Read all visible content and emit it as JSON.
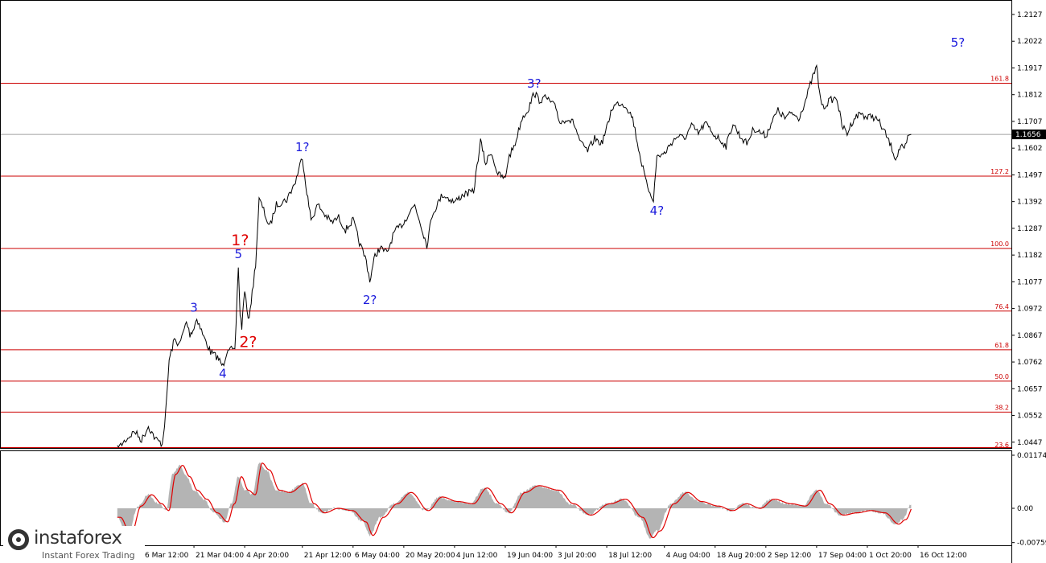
{
  "chart_data": [
    {
      "type": "line",
      "title": "",
      "xlabel": "",
      "ylabel": "",
      "x_ticks": [
        "6 Mar 12:00",
        "21 Mar 04:00",
        "4 Apr 20:00",
        "21 Apr 12:00",
        "6 May 04:00",
        "20 May 20:00",
        "4 Jun 12:00",
        "19 Jun 04:00",
        "3 Jul 20:00",
        "18 Jul 12:00",
        "4 Aug 04:00",
        "18 Aug 20:00",
        "2 Sep 12:00",
        "17 Sep 04:00",
        "1 Oct 20:00",
        "16 Oct 12:00"
      ],
      "y_ticks": [
        "1.2127",
        "1.2022",
        "1.1917",
        "1.1812",
        "1.1707",
        "1.1602",
        "1.1497",
        "1.1392",
        "1.1287",
        "1.1182",
        "1.1077",
        "1.0972",
        "1.0867",
        "1.0762",
        "1.0657",
        "1.0552",
        "1.0447"
      ],
      "ylim": [
        1.044,
        1.218
      ],
      "current_price": "1.1656",
      "price_path": [
        {
          "x": "27 Feb 00:00",
          "y": 1.042
        },
        {
          "x": "1 Mar 00:00",
          "y": 1.045
        },
        {
          "x": "4 Mar 00:00",
          "y": 1.049
        },
        {
          "x": "6 Mar 00:00",
          "y": 1.0455
        },
        {
          "x": "8 Mar 00:00",
          "y": 1.051
        },
        {
          "x": "10 Mar 00:00",
          "y": 1.046
        },
        {
          "x": "12 Mar 00:00",
          "y": 1.044
        },
        {
          "x": "13 Mar 00:00",
          "y": 1.056
        },
        {
          "x": "14 Mar 00:00",
          "y": 1.077
        },
        {
          "x": "15 Mar 12:00",
          "y": 1.085
        },
        {
          "x": "17 Mar 00:00",
          "y": 1.083
        },
        {
          "x": "19 Mar 00:00",
          "y": 1.092
        },
        {
          "x": "20 Mar 00:00",
          "y": 1.087
        },
        {
          "x": "21 Mar 04:00",
          "y": 1.0895
        },
        {
          "x": "22 Mar 00:00",
          "y": 1.0935
        },
        {
          "x": "24 Mar 00:00",
          "y": 1.086
        },
        {
          "x": "26 Mar 00:00",
          "y": 1.08
        },
        {
          "x": "28 Mar 00:00",
          "y": 1.078
        },
        {
          "x": "29 Mar 12:00",
          "y": 1.0745
        },
        {
          "x": "31 Mar 00:00",
          "y": 1.082
        },
        {
          "x": "2 Apr 00:00",
          "y": 1.08
        },
        {
          "x": "3 Apr 00:00",
          "y": 1.114
        },
        {
          "x": "3 Apr 12:00",
          "y": 1.095
        },
        {
          "x": "4 Apr 00:00",
          "y": 1.09
        },
        {
          "x": "4 Apr 20:00",
          "y": 1.105
        },
        {
          "x": "5 Apr 20:00",
          "y": 1.092
        },
        {
          "x": "7 Apr 00:00",
          "y": 1.103
        },
        {
          "x": "8 Apr 00:00",
          "y": 1.115
        },
        {
          "x": "9 Apr 00:00",
          "y": 1.14
        },
        {
          "x": "10 Apr 00:00",
          "y": 1.137
        },
        {
          "x": "12 Apr 00:00",
          "y": 1.129
        },
        {
          "x": "14 Apr 00:00",
          "y": 1.138
        },
        {
          "x": "17 Apr 00:00",
          "y": 1.14
        },
        {
          "x": "19 Apr 12:00",
          "y": 1.147
        },
        {
          "x": "21 Apr 12:00",
          "y": 1.157
        },
        {
          "x": "22 Apr 12:00",
          "y": 1.146
        },
        {
          "x": "24 Apr 00:00",
          "y": 1.132
        },
        {
          "x": "26 Apr 00:00",
          "y": 1.138
        },
        {
          "x": "28 Apr 00:00",
          "y": 1.134
        },
        {
          "x": "30 Apr 00:00",
          "y": 1.131
        },
        {
          "x": "2 May 00:00",
          "y": 1.133
        },
        {
          "x": "4 May 00:00",
          "y": 1.128
        },
        {
          "x": "6 May 04:00",
          "y": 1.132
        },
        {
          "x": "8 May 00:00",
          "y": 1.123
        },
        {
          "x": "10 May 00:00",
          "y": 1.116
        },
        {
          "x": "11 May 00:00",
          "y": 1.108
        },
        {
          "x": "12 May 12:00",
          "y": 1.118
        },
        {
          "x": "14 May 00:00",
          "y": 1.121
        },
        {
          "x": "16 May 00:00",
          "y": 1.119
        },
        {
          "x": "18 May 00:00",
          "y": 1.127
        },
        {
          "x": "20 May 20:00",
          "y": 1.131
        },
        {
          "x": "22 May 00:00",
          "y": 1.134
        },
        {
          "x": "24 May 00:00",
          "y": 1.138
        },
        {
          "x": "26 May 00:00",
          "y": 1.129
        },
        {
          "x": "27 May 12:00",
          "y": 1.122
        },
        {
          "x": "29 May 00:00",
          "y": 1.134
        },
        {
          "x": "1 Jun 00:00",
          "y": 1.142
        },
        {
          "x": "4 Jun 12:00",
          "y": 1.139
        },
        {
          "x": "7 Jun 00:00",
          "y": 1.142
        },
        {
          "x": "10 Jun 00:00",
          "y": 1.143
        },
        {
          "x": "11 Jun 00:00",
          "y": 1.153
        },
        {
          "x": "12 Jun 00:00",
          "y": 1.163
        },
        {
          "x": "13 Jun 12:00",
          "y": 1.154
        },
        {
          "x": "15 Jun 00:00",
          "y": 1.159
        },
        {
          "x": "17 Jun 00:00",
          "y": 1.15
        },
        {
          "x": "19 Jun 04:00",
          "y": 1.148
        },
        {
          "x": "20 Jun 00:00",
          "y": 1.156
        },
        {
          "x": "22 Jun 00:00",
          "y": 1.162
        },
        {
          "x": "24 Jun 00:00",
          "y": 1.172
        },
        {
          "x": "26 Jun 00:00",
          "y": 1.176
        },
        {
          "x": "27 Jun 12:00",
          "y": 1.182
        },
        {
          "x": "29 Jun 00:00",
          "y": 1.179
        },
        {
          "x": "1 Jul 00:00",
          "y": 1.18
        },
        {
          "x": "3 Jul 20:00",
          "y": 1.176
        },
        {
          "x": "5 Jul 00:00",
          "y": 1.17
        },
        {
          "x": "7 Jul 00:00",
          "y": 1.172
        },
        {
          "x": "9 Jul 00:00",
          "y": 1.17
        },
        {
          "x": "11 Jul 00:00",
          "y": 1.162
        },
        {
          "x": "13 Jul 00:00",
          "y": 1.159
        },
        {
          "x": "15 Jul 00:00",
          "y": 1.164
        },
        {
          "x": "17 Jul 00:00",
          "y": 1.162
        },
        {
          "x": "18 Jul 12:00",
          "y": 1.168
        },
        {
          "x": "20 Jul 00:00",
          "y": 1.176
        },
        {
          "x": "22 Jul 00:00",
          "y": 1.178
        },
        {
          "x": "24 Jul 00:00",
          "y": 1.177
        },
        {
          "x": "26 Jul 00:00",
          "y": 1.172
        },
        {
          "x": "28 Jul 00:00",
          "y": 1.158
        },
        {
          "x": "30 Jul 00:00",
          "y": 1.146
        },
        {
          "x": "1 Aug 00:00",
          "y": 1.14
        },
        {
          "x": "2 Aug 00:00",
          "y": 1.157
        },
        {
          "x": "4 Aug 04:00",
          "y": 1.158
        },
        {
          "x": "6 Aug 00:00",
          "y": 1.162
        },
        {
          "x": "8 Aug 00:00",
          "y": 1.165
        },
        {
          "x": "10 Aug 00:00",
          "y": 1.164
        },
        {
          "x": "12 Aug 00:00",
          "y": 1.169
        },
        {
          "x": "14 Aug 00:00",
          "y": 1.166
        },
        {
          "x": "16 Aug 00:00",
          "y": 1.17
        },
        {
          "x": "18 Aug 20:00",
          "y": 1.165
        },
        {
          "x": "20 Aug 00:00",
          "y": 1.164
        },
        {
          "x": "22 Aug 00:00",
          "y": 1.161
        },
        {
          "x": "24 Aug 00:00",
          "y": 1.17
        },
        {
          "x": "26 Aug 00:00",
          "y": 1.165
        },
        {
          "x": "28 Aug 00:00",
          "y": 1.162
        },
        {
          "x": "30 Aug 00:00",
          "y": 1.168
        },
        {
          "x": "2 Sep 12:00",
          "y": 1.165
        },
        {
          "x": "4 Sep 00:00",
          "y": 1.17
        },
        {
          "x": "6 Sep 00:00",
          "y": 1.175
        },
        {
          "x": "8 Sep 00:00",
          "y": 1.172
        },
        {
          "x": "10 Sep 00:00",
          "y": 1.174
        },
        {
          "x": "12 Sep 00:00",
          "y": 1.172
        },
        {
          "x": "14 Sep 00:00",
          "y": 1.179
        },
        {
          "x": "16 Sep 00:00",
          "y": 1.188
        },
        {
          "x": "17 Sep 04:00",
          "y": 1.192
        },
        {
          "x": "18 Sep 00:00",
          "y": 1.182
        },
        {
          "x": "19 Sep 00:00",
          "y": 1.176
        },
        {
          "x": "21 Sep 00:00",
          "y": 1.179
        },
        {
          "x": "23 Sep 00:00",
          "y": 1.18
        },
        {
          "x": "24 Sep 12:00",
          "y": 1.169
        },
        {
          "x": "26 Sep 00:00",
          "y": 1.166
        },
        {
          "x": "28 Sep 00:00",
          "y": 1.172
        },
        {
          "x": "30 Sep 00:00",
          "y": 1.174
        },
        {
          "x": "1 Oct 20:00",
          "y": 1.172
        },
        {
          "x": "3 Oct 00:00",
          "y": 1.173
        },
        {
          "x": "5 Oct 00:00",
          "y": 1.171
        },
        {
          "x": "7 Oct 00:00",
          "y": 1.166
        },
        {
          "x": "9 Oct 00:00",
          "y": 1.16
        },
        {
          "x": "10 Oct 00:00",
          "y": 1.156
        },
        {
          "x": "11 Oct 12:00",
          "y": 1.161
        },
        {
          "x": "12 Oct 12:00",
          "y": 1.159
        },
        {
          "x": "13 Oct 12:00",
          "y": 1.164
        },
        {
          "x": "14 Oct 12:00",
          "y": 1.1656
        }
      ],
      "fib_levels": [
        {
          "label": "161.8",
          "y": 1.1857
        },
        {
          "label": "127.2",
          "y": 1.1492
        },
        {
          "label": "100.0",
          "y": 1.1208
        },
        {
          "label": "76.4",
          "y": 1.0962
        },
        {
          "label": "61.8",
          "y": 1.081
        },
        {
          "label": "50.0",
          "y": 1.0687
        },
        {
          "label": "38.2",
          "y": 1.0565
        },
        {
          "label": "23.6",
          "y": 1.0411
        }
      ],
      "wave_labels": [
        {
          "text": "3",
          "x": "21 Mar 04:00",
          "y": 1.096,
          "color": "blue"
        },
        {
          "text": "4",
          "x": "29 Mar 12:00",
          "y": 1.07,
          "color": "blue"
        },
        {
          "text": "5",
          "x": "3 Apr 00:00",
          "y": 1.117,
          "color": "blue"
        },
        {
          "text": "1?",
          "x": "3 Apr 12:00",
          "y": 1.122,
          "color": "red"
        },
        {
          "text": "2?",
          "x": "5 Apr 20:00",
          "y": 1.082,
          "color": "red"
        },
        {
          "text": "1?",
          "x": "21 Apr 12:00",
          "y": 1.159,
          "color": "blue"
        },
        {
          "text": "2?",
          "x": "11 May 00:00",
          "y": 1.099,
          "color": "blue"
        },
        {
          "text": "3?",
          "x": "27 Jun 12:00",
          "y": 1.184,
          "color": "blue"
        },
        {
          "text": "4?",
          "x": "2 Aug 00:00",
          "y": 1.134,
          "color": "blue"
        },
        {
          "text": "5?",
          "x": "28 Oct 00:00",
          "y": 1.2,
          "color": "blue"
        }
      ]
    },
    {
      "type": "area",
      "title": "",
      "y_ticks": [
        "0.01174",
        "0.00",
        "-0.00759"
      ],
      "ylim": [
        -0.00759,
        0.01174
      ],
      "oscillator": [
        {
          "x": "27 Feb 00:00",
          "y": -0.002
        },
        {
          "x": "2 Mar 00:00",
          "y": -0.006
        },
        {
          "x": "5 Mar 00:00",
          "y": 0.0005
        },
        {
          "x": "8 Mar 00:00",
          "y": 0.003
        },
        {
          "x": "11 Mar 00:00",
          "y": 0.001
        },
        {
          "x": "13 Mar 00:00",
          "y": -0.0005
        },
        {
          "x": "15 Mar 00:00",
          "y": 0.0075
        },
        {
          "x": "17 Mar 00:00",
          "y": 0.0095
        },
        {
          "x": "19 Mar 00:00",
          "y": 0.007
        },
        {
          "x": "21 Mar 04:00",
          "y": 0.004
        },
        {
          "x": "24 Mar 00:00",
          "y": 0.002
        },
        {
          "x": "27 Mar 00:00",
          "y": -0.001
        },
        {
          "x": "30 Mar 00:00",
          "y": -0.003
        },
        {
          "x": "1 Apr 00:00",
          "y": 0.001
        },
        {
          "x": "3 Apr 00:00",
          "y": 0.007
        },
        {
          "x": "5 Apr 00:00",
          "y": 0.004
        },
        {
          "x": "7 Apr 00:00",
          "y": 0.003
        },
        {
          "x": "9 Apr 00:00",
          "y": 0.01
        },
        {
          "x": "11 Apr 00:00",
          "y": 0.0085
        },
        {
          "x": "14 Apr 00:00",
          "y": 0.004
        },
        {
          "x": "17 Apr 00:00",
          "y": 0.0035
        },
        {
          "x": "21 Apr 12:00",
          "y": 0.0055
        },
        {
          "x": "24 Apr 00:00",
          "y": 0.001
        },
        {
          "x": "27 Apr 00:00",
          "y": -0.001
        },
        {
          "x": "1 May 00:00",
          "y": 0.0
        },
        {
          "x": "5 May 00:00",
          "y": -0.0005
        },
        {
          "x": "9 May 00:00",
          "y": -0.003
        },
        {
          "x": "11 May 00:00",
          "y": -0.006
        },
        {
          "x": "14 May 00:00",
          "y": -0.002
        },
        {
          "x": "18 May 00:00",
          "y": 0.001
        },
        {
          "x": "22 May 00:00",
          "y": 0.0035
        },
        {
          "x": "27 May 00:00",
          "y": -0.0005
        },
        {
          "x": "31 May 00:00",
          "y": 0.0025
        },
        {
          "x": "4 Jun 12:00",
          "y": 0.0015
        },
        {
          "x": "9 Jun 00:00",
          "y": 0.001
        },
        {
          "x": "13 Jun 00:00",
          "y": 0.0045
        },
        {
          "x": "17 Jun 00:00",
          "y": 0.001
        },
        {
          "x": "20 Jun 00:00",
          "y": -0.001
        },
        {
          "x": "24 Jun 00:00",
          "y": 0.0035
        },
        {
          "x": "28 Jun 00:00",
          "y": 0.005
        },
        {
          "x": "3 Jul 20:00",
          "y": 0.004
        },
        {
          "x": "8 Jul 00:00",
          "y": 0.001
        },
        {
          "x": "13 Jul 00:00",
          "y": -0.0015
        },
        {
          "x": "18 Jul 12:00",
          "y": 0.001
        },
        {
          "x": "23 Jul 00:00",
          "y": 0.002
        },
        {
          "x": "28 Jul 00:00",
          "y": -0.002
        },
        {
          "x": "31 Jul 00:00",
          "y": -0.0065
        },
        {
          "x": "2 Aug 00:00",
          "y": -0.005
        },
        {
          "x": "6 Aug 00:00",
          "y": 0.001
        },
        {
          "x": "10 Aug 00:00",
          "y": 0.0035
        },
        {
          "x": "14 Aug 00:00",
          "y": 0.0015
        },
        {
          "x": "18 Aug 20:00",
          "y": 0.0005
        },
        {
          "x": "23 Aug 00:00",
          "y": -0.0005
        },
        {
          "x": "27 Aug 00:00",
          "y": 0.001
        },
        {
          "x": "31 Aug 00:00",
          "y": 0.0
        },
        {
          "x": "4 Sep 00:00",
          "y": 0.002
        },
        {
          "x": "9 Sep 00:00",
          "y": 0.001
        },
        {
          "x": "13 Sep 00:00",
          "y": 0.0005
        },
        {
          "x": "17 Sep 04:00",
          "y": 0.004
        },
        {
          "x": "20 Sep 00:00",
          "y": 0.001
        },
        {
          "x": "24 Sep 00:00",
          "y": -0.0015
        },
        {
          "x": "28 Sep 00:00",
          "y": -0.001
        },
        {
          "x": "2 Oct 00:00",
          "y": -0.0005
        },
        {
          "x": "6 Oct 00:00",
          "y": -0.001
        },
        {
          "x": "10 Oct 00:00",
          "y": -0.0035
        },
        {
          "x": "12 Oct 00:00",
          "y": -0.0025
        },
        {
          "x": "14 Oct 12:00",
          "y": 0.0008
        }
      ]
    }
  ],
  "branding": {
    "logo_text": "instaforex",
    "tagline": "Instant Forex Trading"
  }
}
